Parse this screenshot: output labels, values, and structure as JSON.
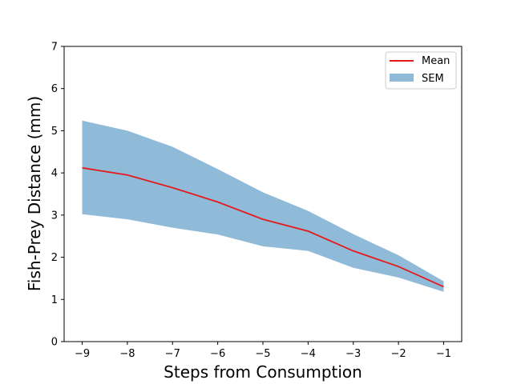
{
  "chart_data": {
    "type": "line",
    "title": "",
    "xlabel": "Steps from Consumption",
    "ylabel": "Fish-Prey Distance (mm)",
    "x": [
      -9,
      -8,
      -7,
      -6,
      -5,
      -4,
      -3,
      -2,
      -1
    ],
    "xticks": [
      -9,
      -8,
      -7,
      -6,
      -5,
      -4,
      -3,
      -2,
      -1
    ],
    "xtick_labels": [
      "−9",
      "−8",
      "−7",
      "−6",
      "−5",
      "−4",
      "−3",
      "−2",
      "−1"
    ],
    "yticks": [
      0,
      1,
      2,
      3,
      4,
      5,
      6,
      7
    ],
    "ytick_labels": [
      "0",
      "1",
      "2",
      "3",
      "4",
      "5",
      "6",
      "7"
    ],
    "xlim": [
      -9.4,
      -0.6
    ],
    "ylim": [
      0,
      7
    ],
    "grid": false,
    "legend_position": "top-right",
    "series": [
      {
        "name": "Mean",
        "kind": "line",
        "color": "#e41a1c",
        "values": [
          4.12,
          3.95,
          3.65,
          3.31,
          2.9,
          2.62,
          2.15,
          1.78,
          1.3
        ]
      },
      {
        "name": "SEM",
        "kind": "band",
        "color": "#8fbad8",
        "lower": [
          3.02,
          2.9,
          2.7,
          2.54,
          2.26,
          2.15,
          1.75,
          1.52,
          1.18
        ],
        "upper": [
          5.24,
          5.0,
          4.62,
          4.09,
          3.54,
          3.1,
          2.55,
          2.05,
          1.43
        ]
      }
    ]
  }
}
